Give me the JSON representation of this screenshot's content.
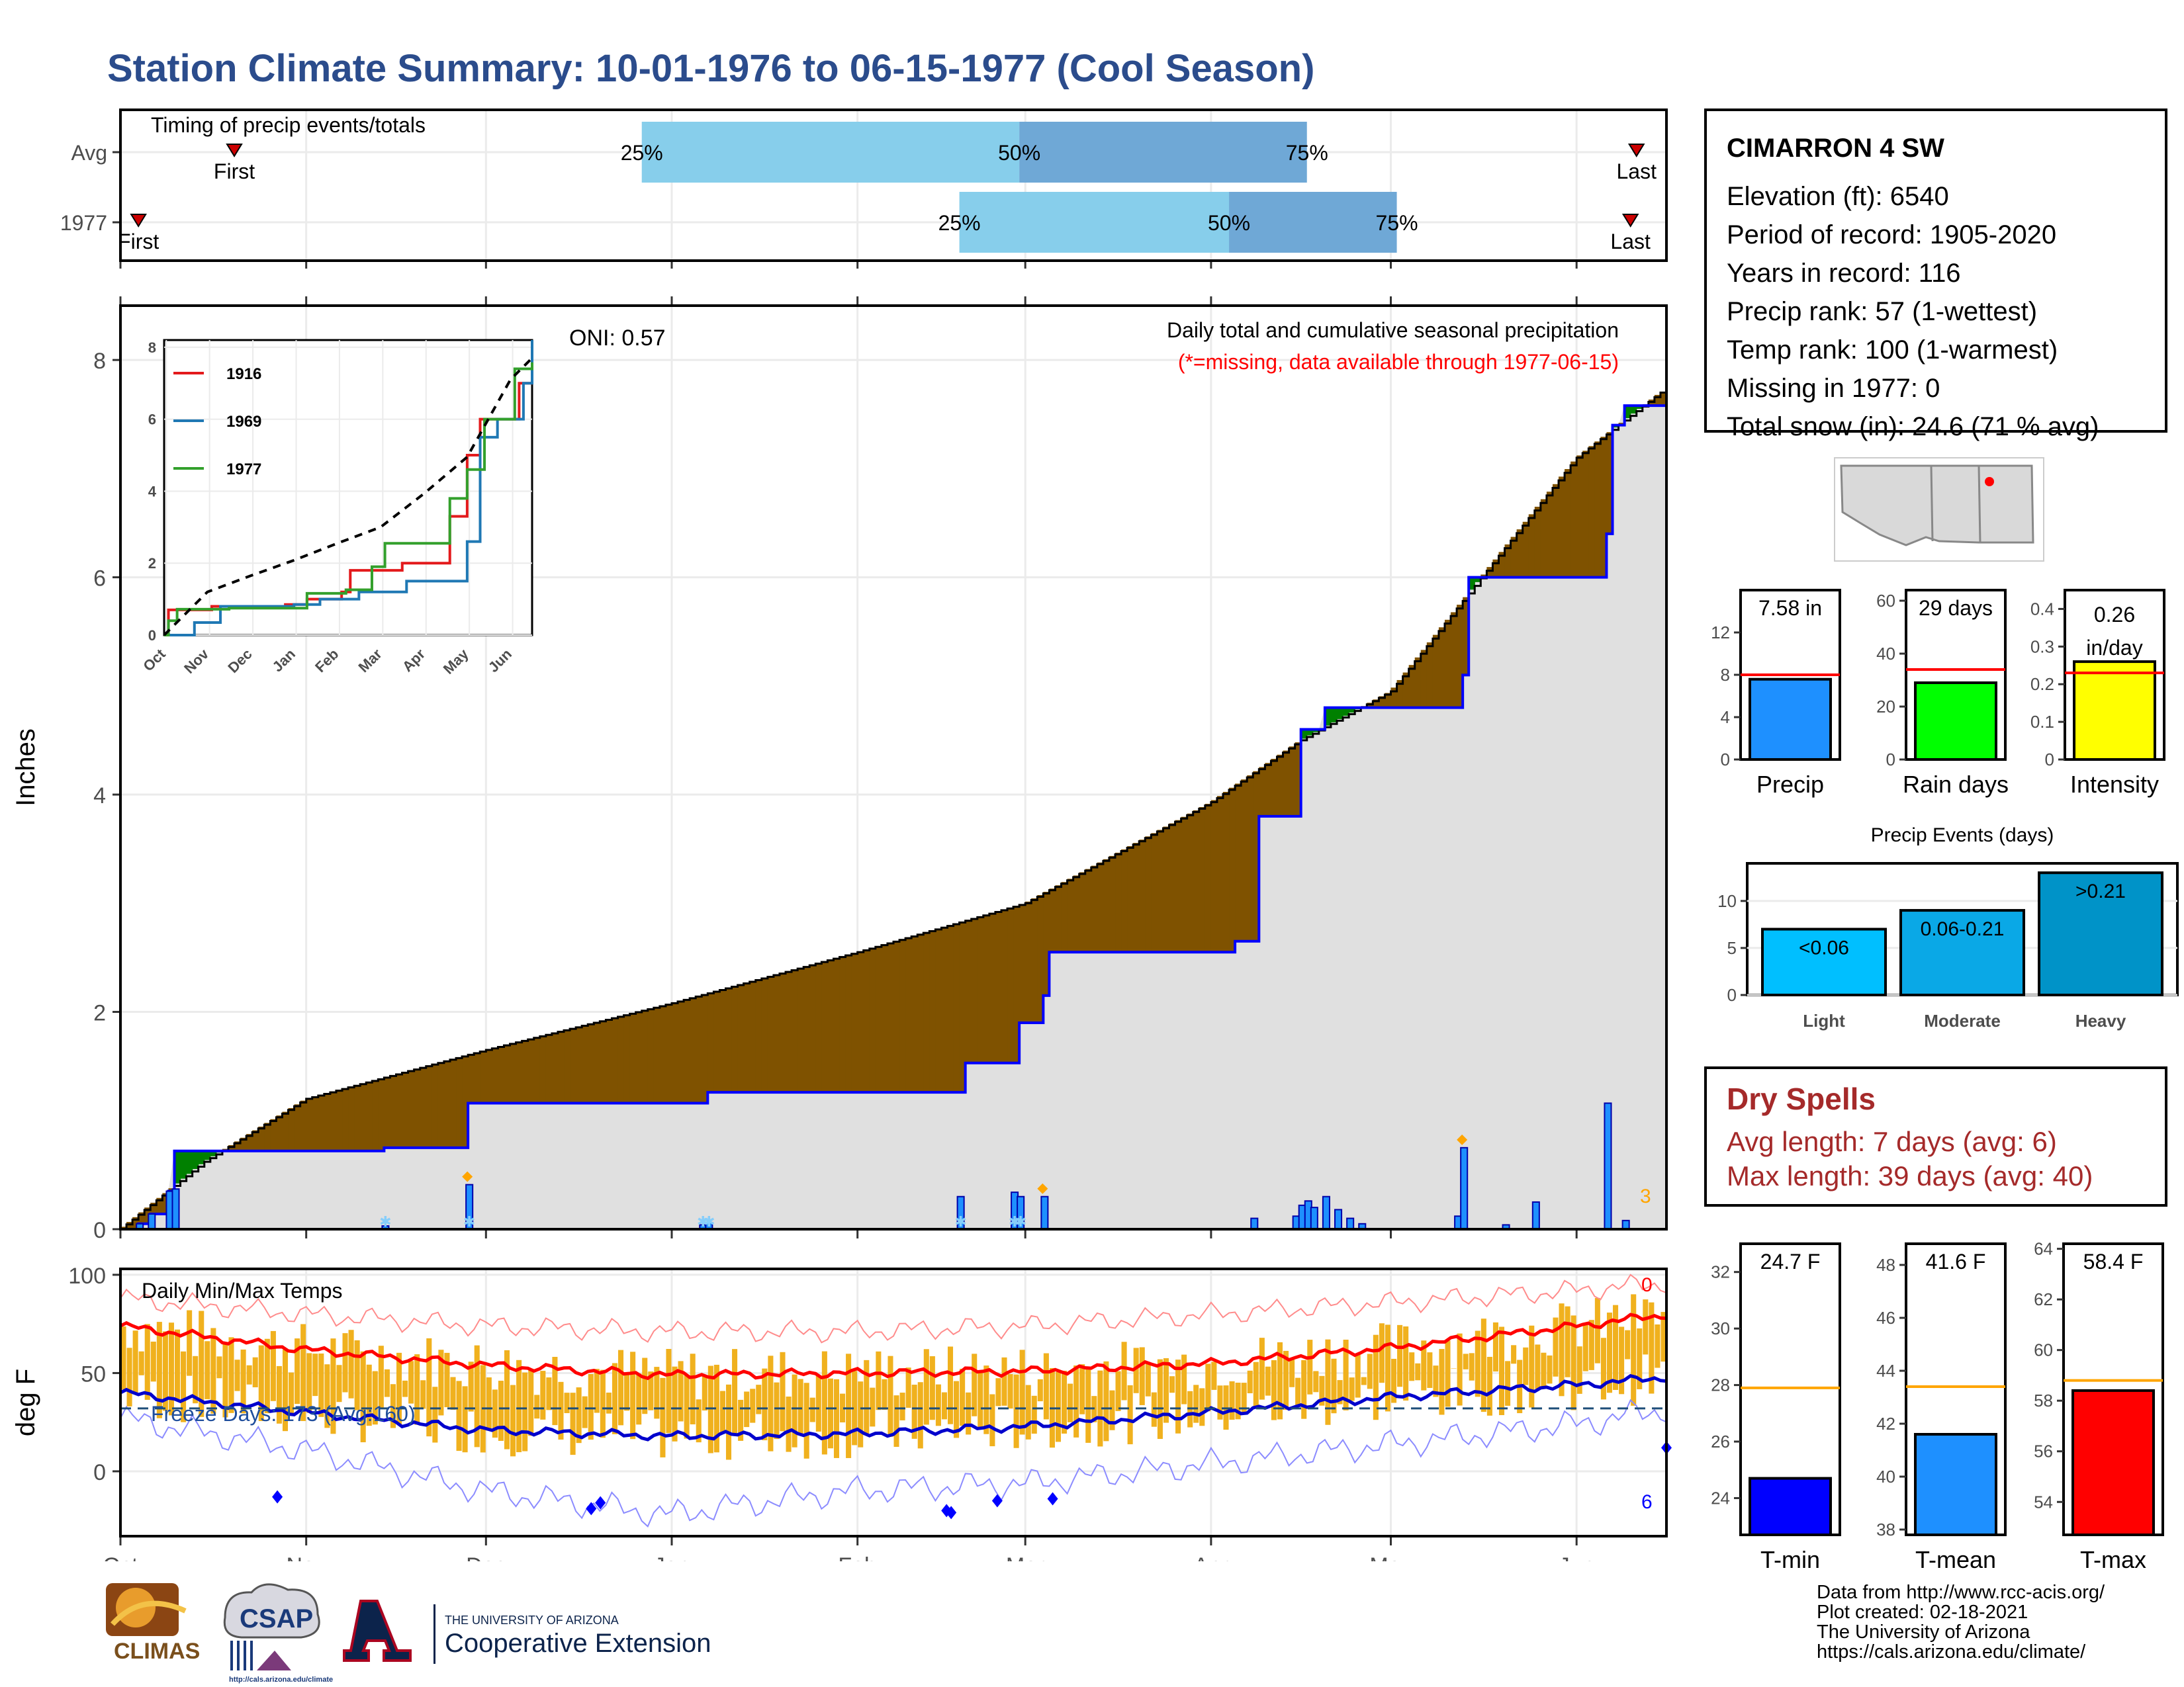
{
  "title": "Station Climate Summary: 10-01-1976 to 06-15-1977 (Cool Season)",
  "station": {
    "name": "CIMARRON 4 SW",
    "lines": [
      "Elevation (ft): 6540",
      "Period of record: 1905-2020",
      "Years in record: 116",
      "Precip rank: 57 (1-wettest)",
      "Temp rank: 100 (1-warmest)",
      "Missing in 1977: 0",
      "Total snow (in): 24.6 (71 % avg)"
    ]
  },
  "dry_spells": {
    "heading": "Dry Spells",
    "avg": "Avg length: 7 days (avg: 6)",
    "max": "Max length: 39 days (avg: 40)"
  },
  "credits": [
    "Data from http://www.rcc-acis.org/",
    "Plot created: 02-18-2021",
    "The University of Arizona",
    "https://cals.arizona.edu/climate/"
  ],
  "logos": {
    "climas": "CLIMAS",
    "csap": "CSAP",
    "csap_url": "http://cals.arizona.edu/climate",
    "ua_top": "THE UNIVERSITY OF ARIZONA",
    "ua_bottom": "Cooperative Extension"
  },
  "colors": {
    "title": "#2b4c8c",
    "cumulative_fill": "#7f5200",
    "wet_fill": "#008000",
    "obs_line": "#0000ff",
    "temp_bar": "#f0b11e",
    "precip_bar": "#1e90ff",
    "rain_bar": "#00ff00",
    "intensity_bar": "#ffff00",
    "tmin_bar": "#0000ff",
    "tmean_bar": "#1e90ff",
    "tmax_bar": "#ff0000"
  },
  "chart_data": [
    {
      "type": "bar",
      "panel": "timing",
      "title": "Timing of precip events/totals",
      "categories": [
        "Avg",
        "1977"
      ],
      "series": [
        {
          "row": "Avg",
          "first": "Oct 20",
          "p25": "Dec 27",
          "p50": "Feb 28",
          "p75": "Apr 17",
          "last": "Jun 11",
          "labels": [
            "First",
            "25%",
            "50%",
            "75%",
            "Last"
          ]
        },
        {
          "row": "1977",
          "first": "Oct 4",
          "p25": "Feb 18",
          "p50": "Apr 4",
          "p75": "May 2",
          "last": "Jun 10",
          "labels": [
            "First",
            "25%",
            "50%",
            "75%",
            "Last"
          ]
        }
      ]
    },
    {
      "type": "area",
      "panel": "precipitation",
      "title": "Daily total and cumulative seasonal precipitation",
      "subtitle": "(*=missing, data available through 1977-06-15)",
      "annotation": "ONI: 0.57",
      "count_label": "3",
      "ylabel": "Inches",
      "ylim": [
        0,
        8.5
      ],
      "yticks": [
        0,
        2,
        4,
        6,
        8
      ],
      "xticks": [
        "Oct",
        "Nov",
        "Dec",
        "Jan",
        "Feb",
        "Mar",
        "Apr",
        "May",
        "Jun"
      ],
      "avg_cumulative": {
        "name": "Average",
        "x": [
          "10-01",
          "10-15",
          "11-01",
          "12-01",
          "01-01",
          "02-01",
          "03-01",
          "04-01",
          "04-16",
          "05-01",
          "06-01",
          "06-15"
        ],
        "y": [
          0.0,
          0.62,
          1.2,
          1.65,
          2.08,
          2.55,
          3.0,
          3.93,
          4.5,
          4.95,
          7.1,
          7.7
        ]
      },
      "obs_cumulative": {
        "name": "1977",
        "x": [
          "10-01",
          "10-04",
          "10-06",
          "10-09",
          "10-10",
          "10-20",
          "11-14",
          "11-27",
          "11-28",
          "01-06",
          "01-07",
          "02-18",
          "02-19",
          "02-27",
          "02-28",
          "03-04",
          "03-05",
          "04-04",
          "04-05",
          "04-08",
          "04-09",
          "04-15",
          "04-16",
          "04-19",
          "04-20",
          "04-24",
          "05-13",
          "05-14",
          "06-06",
          "06-07",
          "06-09",
          "06-15"
        ],
        "y": [
          0,
          0.05,
          0.14,
          0.35,
          0.72,
          0.72,
          0.75,
          0.75,
          1.16,
          1.16,
          1.26,
          1.26,
          1.53,
          1.53,
          1.9,
          2.15,
          2.55,
          2.55,
          2.65,
          2.65,
          3.8,
          3.8,
          4.6,
          4.6,
          4.8,
          4.8,
          5.1,
          6.0,
          6.4,
          7.4,
          7.58,
          7.58
        ]
      },
      "daily_bars": {
        "x": [
          "10-04",
          "10-06",
          "10-09",
          "10-10",
          "11-14",
          "11-28",
          "01-06",
          "01-07",
          "02-18",
          "02-27",
          "02-28",
          "03-04",
          "04-08",
          "04-15",
          "04-16",
          "04-17",
          "04-18",
          "04-20",
          "04-22",
          "04-24",
          "04-26",
          "05-12",
          "05-13",
          "05-20",
          "05-25",
          "06-06",
          "06-09"
        ],
        "y": [
          0.05,
          0.14,
          0.35,
          0.37,
          0.03,
          0.41,
          0.04,
          0.06,
          0.3,
          0.34,
          0.3,
          0.3,
          0.1,
          0.12,
          0.22,
          0.26,
          0.2,
          0.3,
          0.18,
          0.1,
          0.05,
          0.12,
          0.75,
          0.04,
          0.25,
          1.16,
          0.08
        ]
      },
      "snow_days": [
        "11-14",
        "11-28",
        "01-06",
        "01-07",
        "02-18",
        "02-27",
        "02-28"
      ],
      "inset": {
        "type": "line",
        "ylim": [
          0,
          8.2
        ],
        "yticks": [
          0,
          2,
          4,
          6,
          8
        ],
        "xticks": [
          "Oct",
          "Nov",
          "Dec",
          "Jan",
          "Feb",
          "Mar",
          "Apr",
          "May",
          "Jun"
        ],
        "series": [
          {
            "name": "1916",
            "color": "#e31a1c",
            "x": [
              0,
              0.1,
              1.1,
              2.8,
              3.3,
              4.1,
              4.3,
              5.0,
              5.5,
              6.1,
              6.6,
              7.0,
              7.3,
              7.6,
              8.2,
              8.5
            ],
            "y": [
              0,
              0.7,
              0.8,
              0.85,
              1.0,
              1.2,
              1.8,
              1.8,
              2.0,
              2.0,
              3.3,
              5.0,
              6.0,
              6.0,
              7.0,
              8.2
            ]
          },
          {
            "name": "1969",
            "color": "#1f78b4",
            "x": [
              0,
              0.7,
              1.3,
              2.3,
              3.0,
              3.6,
              4.5,
              5.6,
              6.5,
              7.0,
              7.3,
              7.7,
              8.3,
              8.5
            ],
            "y": [
              0,
              0.35,
              0.8,
              0.8,
              0.85,
              1.0,
              1.2,
              1.5,
              1.5,
              2.6,
              5.5,
              6.0,
              7.0,
              8.2
            ]
          },
          {
            "name": "1977",
            "color": "#33a02c",
            "x": [
              0,
              0.1,
              0.3,
              1.5,
              3.3,
              4.2,
              4.8,
              5.1,
              6.3,
              6.6,
              7.0,
              7.4,
              8.1,
              8.5
            ],
            "y": [
              0,
              0.4,
              0.72,
              0.75,
              1.16,
              1.26,
              1.9,
              2.55,
              2.55,
              3.8,
              4.6,
              6.0,
              7.4,
              7.58
            ]
          },
          {
            "name": "Average",
            "color": "#000000",
            "dashed": true,
            "x": [
              0,
              1,
              2,
              3,
              4,
              5,
              6,
              7,
              8,
              8.5
            ],
            "y": [
              0,
              1.2,
              1.65,
              2.08,
              2.55,
              3.0,
              3.93,
              4.95,
              7.1,
              7.7
            ]
          }
        ]
      }
    },
    {
      "type": "line",
      "panel": "temperature",
      "title": "Daily Min/Max Temps",
      "annotation": "Freeze Days: 173 (Avg:160)",
      "count_high": "0",
      "count_low": "6",
      "ylabel": "deg F",
      "ylim": [
        -33,
        103
      ],
      "yticks": [
        0,
        50,
        100
      ],
      "xticks": [
        "Oct",
        "Nov",
        "Dec",
        "Jan",
        "Feb",
        "Mar",
        "Apr",
        "May",
        "Jun"
      ],
      "freezing_line": 32,
      "avg_max": {
        "x": [
          0,
          1,
          2,
          3,
          4,
          5,
          6,
          7,
          8,
          8.5
        ],
        "y": [
          74,
          62,
          54,
          49,
          50,
          51,
          55,
          63,
          74,
          80
        ]
      },
      "avg_min": {
        "x": [
          0,
          1,
          2,
          3,
          4,
          5,
          6,
          7,
          8,
          8.5
        ],
        "y": [
          40,
          30,
          21,
          18,
          19,
          23,
          30,
          38,
          44,
          48
        ]
      },
      "record_max": {
        "x": [
          0,
          1,
          2,
          3,
          4,
          5,
          6,
          7,
          8,
          8.5
        ],
        "y": [
          88,
          80,
          74,
          71,
          71,
          74,
          80,
          86,
          92,
          96
        ]
      },
      "record_min": {
        "x": [
          0,
          1,
          2,
          3,
          4,
          5,
          6,
          7,
          8,
          8.5
        ],
        "y": [
          27,
          11,
          -10,
          -22,
          -10,
          -6,
          4,
          14,
          24,
          32
        ]
      }
    },
    {
      "type": "bar",
      "panel": "summary-bars",
      "groups": [
        {
          "name": "Precip",
          "label": "7.58 in",
          "value": 7.58,
          "avg": 8.0,
          "ylim": [
            0,
            16
          ],
          "yticks": [
            0,
            4,
            8,
            12
          ],
          "color": "#1e90ff"
        },
        {
          "name": "Rain days",
          "label": "29 days",
          "value": 29,
          "avg": 34,
          "ylim": [
            0,
            64
          ],
          "yticks": [
            0,
            20,
            40,
            60
          ],
          "color": "#00ff00"
        },
        {
          "name": "Intensity",
          "label": "0.26 in/day",
          "value": 0.26,
          "avg": 0.23,
          "ylim": [
            0,
            0.45
          ],
          "yticks": [
            0.0,
            0.1,
            0.2,
            0.3,
            0.4
          ],
          "color": "#ffff00"
        }
      ]
    },
    {
      "type": "bar",
      "panel": "precip-events",
      "title": "Precip Events (days)",
      "categories": [
        "Light",
        "Moderate",
        "Heavy"
      ],
      "labels": [
        "<0.06",
        "0.06-0.21",
        ">0.21"
      ],
      "values": [
        7,
        9,
        13
      ],
      "ylim": [
        0,
        14
      ],
      "yticks": [
        0,
        5,
        10
      ]
    },
    {
      "type": "bar",
      "panel": "temp-bars",
      "groups": [
        {
          "name": "T-min",
          "label": "24.7 F",
          "value": 24.7,
          "avg": 27.9,
          "ylim": [
            22.7,
            33
          ],
          "yticks": [
            24,
            26,
            28,
            30,
            32
          ],
          "color": "#0000ff"
        },
        {
          "name": "T-mean",
          "label": "41.6 F",
          "value": 41.6,
          "avg": 43.4,
          "ylim": [
            37.8,
            48.8
          ],
          "yticks": [
            38,
            40,
            42,
            44,
            46,
            48
          ],
          "color": "#1e90ff"
        },
        {
          "name": "T-max",
          "label": "58.4 F",
          "value": 58.4,
          "avg": 58.8,
          "ylim": [
            52.7,
            64.2
          ],
          "yticks": [
            54,
            56,
            58,
            60,
            62,
            64
          ],
          "color": "#ff0000"
        }
      ]
    }
  ]
}
